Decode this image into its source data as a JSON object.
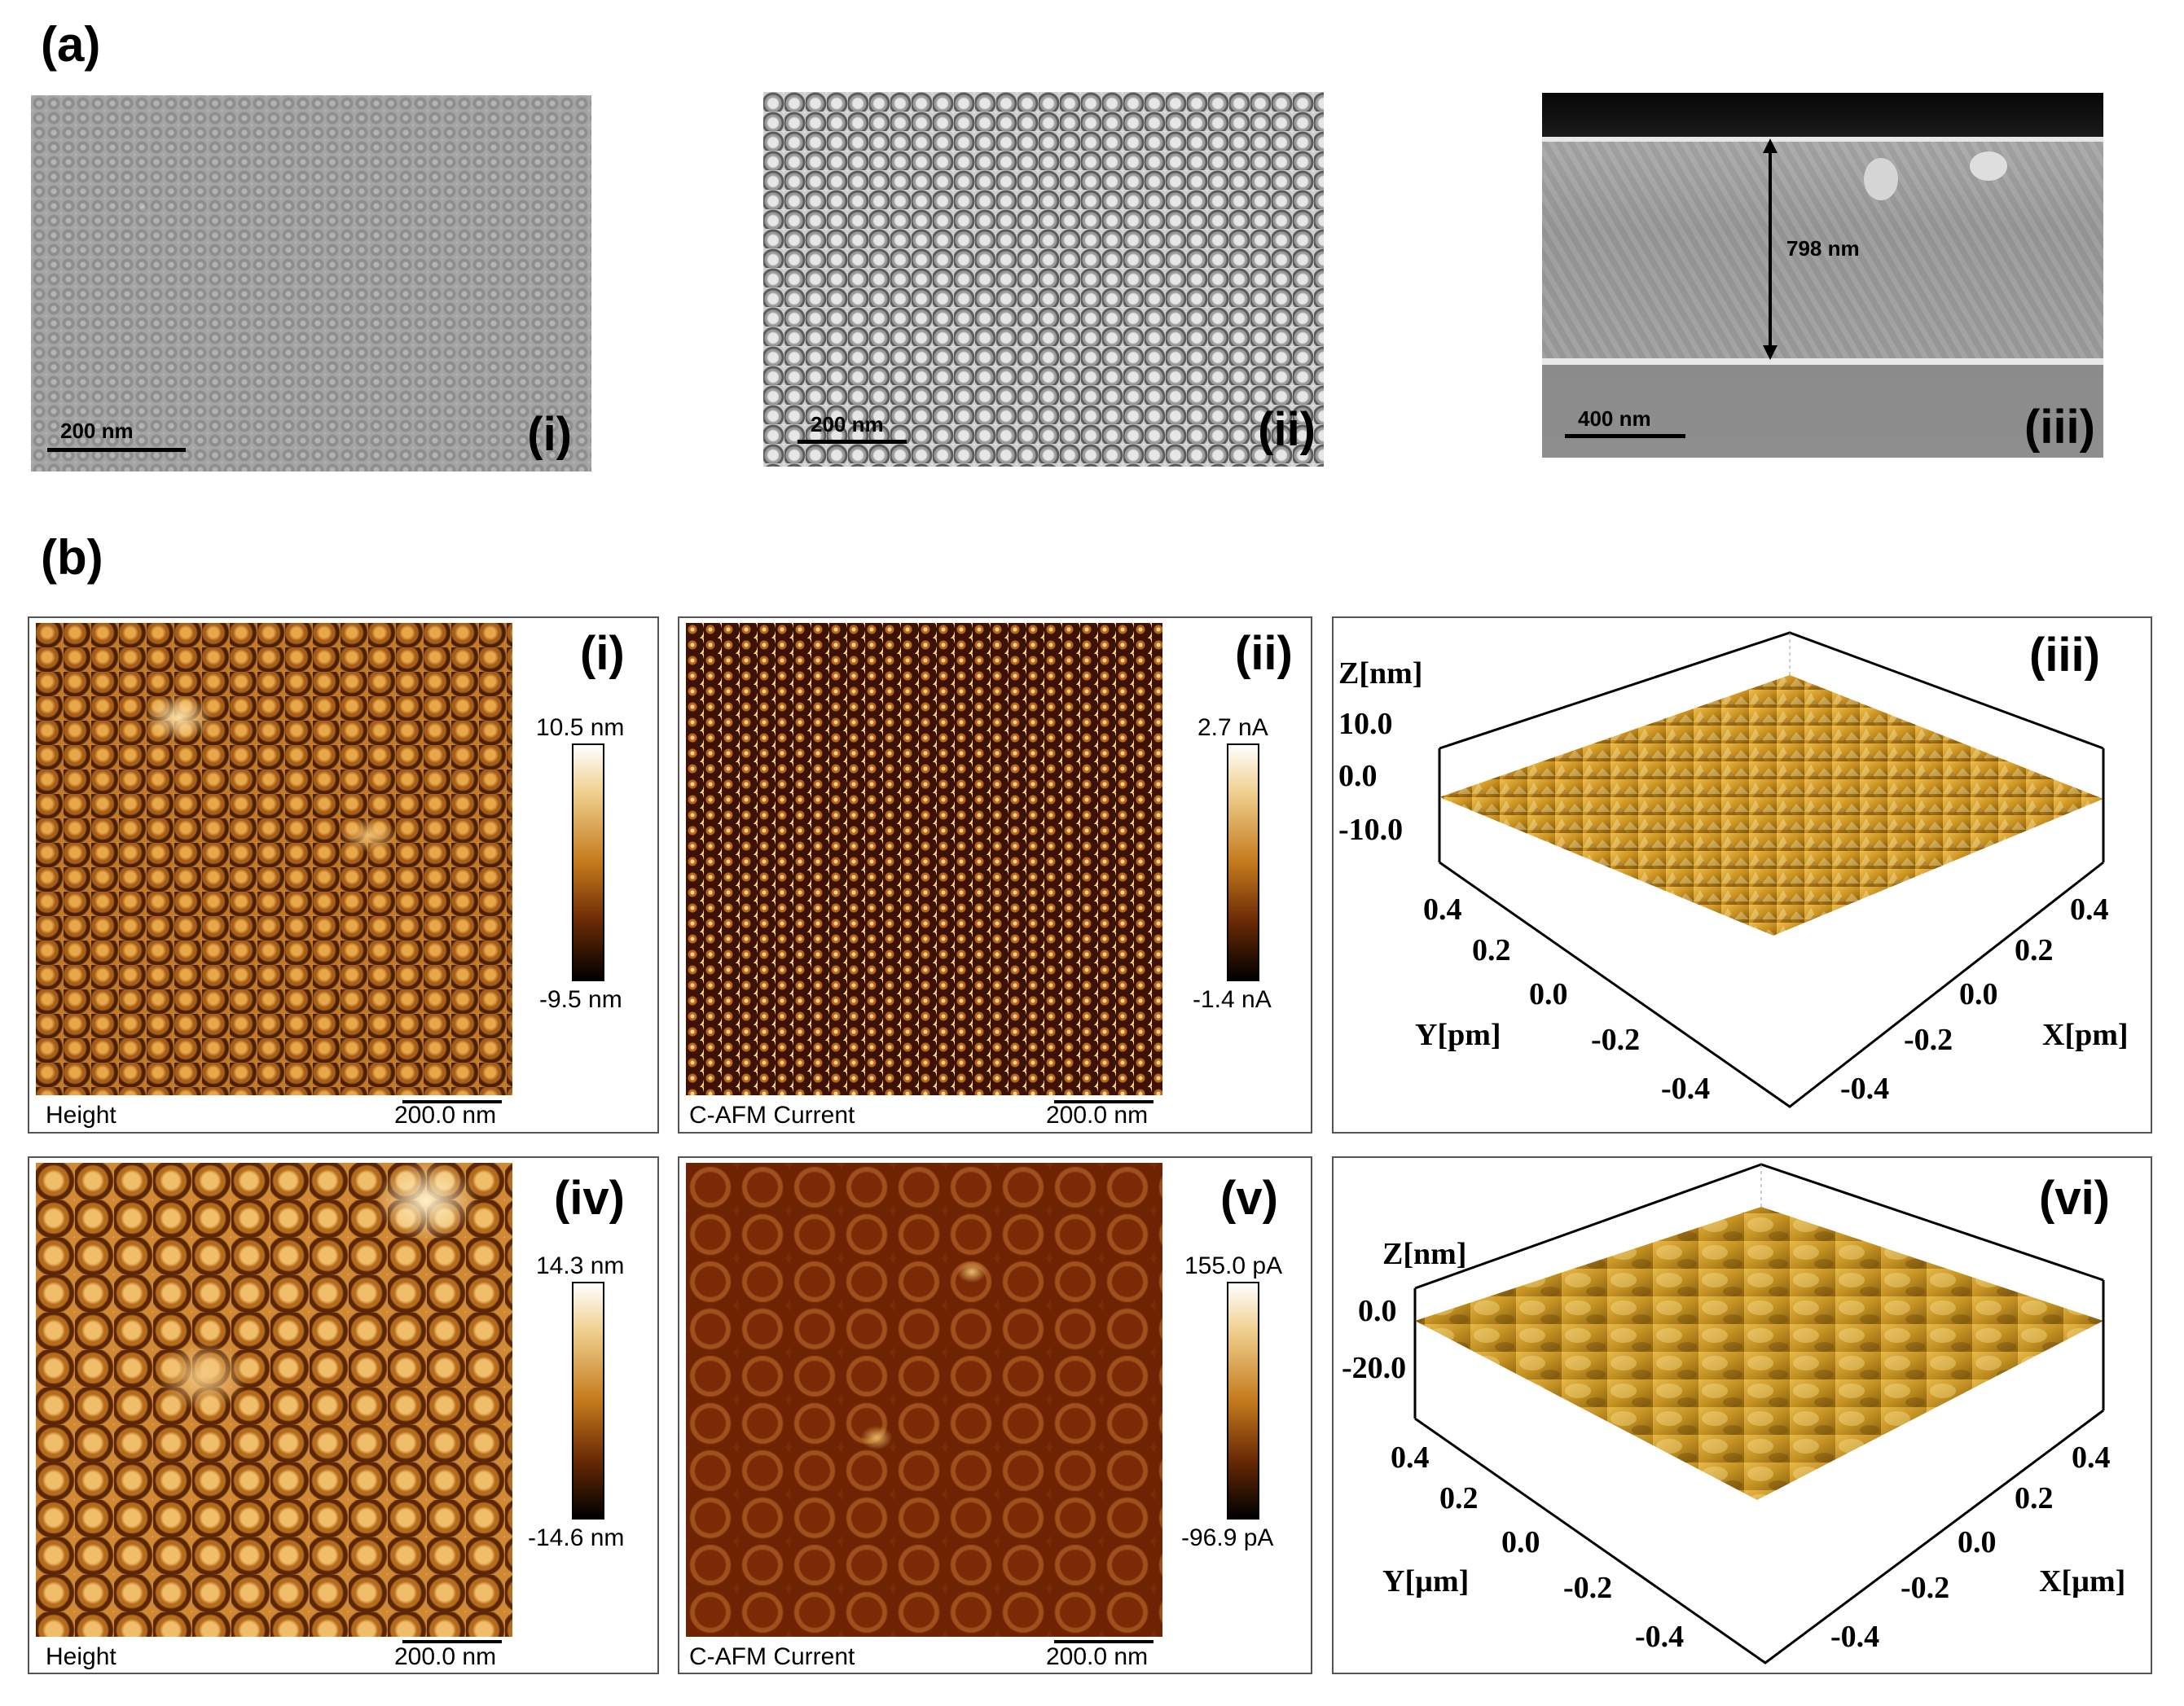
{
  "section_a": {
    "label": "(a)"
  },
  "section_b": {
    "label": "(b)"
  },
  "sem_panels": [
    {
      "roman": "(i)",
      "scale": "200 nm"
    },
    {
      "roman": "(ii)",
      "scale": "200 nm"
    },
    {
      "roman": "(iii)",
      "scale": "400 nm",
      "thickness": "798 nm"
    }
  ],
  "afm_panels": [
    {
      "roman": "(i)",
      "caption": "Height",
      "scale": "200.0 nm",
      "cbar_max": "10.5 nm",
      "cbar_min": "-9.5 nm"
    },
    {
      "roman": "(ii)",
      "caption": "C-AFM Current",
      "scale": "200.0 nm",
      "cbar_max": "2.7 nA",
      "cbar_min": "-1.4 nA"
    },
    {
      "roman": "(iv)",
      "caption": "Height",
      "scale": "200.0 nm",
      "cbar_max": "14.3 nm",
      "cbar_min": "-14.6 nm"
    },
    {
      "roman": "(v)",
      "caption": "C-AFM Current",
      "scale": "200.0 nm",
      "cbar_max": "155.0 pA",
      "cbar_min": "-96.9 pA"
    }
  ],
  "plot3d": [
    {
      "roman": "(iii)",
      "z_label": "Z[nm]",
      "z_ticks": [
        "10.0",
        "0.0",
        "-10.0"
      ],
      "y_label": "Y[pm]",
      "y_ticks": [
        "0.4",
        "0.2",
        "0.0",
        "-0.2",
        "-0.4"
      ],
      "x_label": "X[pm]",
      "x_ticks": [
        "0.4",
        "0.2",
        "0.0",
        "-0.2",
        "-0.4"
      ]
    },
    {
      "roman": "(vi)",
      "z_label": "Z[nm]",
      "z_ticks": [
        "0.0",
        "-20.0"
      ],
      "y_label": "Y[µm]",
      "y_ticks": [
        "0.4",
        "0.2",
        "0.0",
        "-0.2",
        "-0.4"
      ],
      "x_label": "X[µm]",
      "x_ticks": [
        "0.4",
        "0.2",
        "0.0",
        "-0.2",
        "-0.4"
      ]
    }
  ],
  "colors": {
    "afm_bright": "#ffe9b0",
    "afm_mid": "#c47a1c",
    "afm_dark": "#2a0c03",
    "sem_gray": "#9c9c9c"
  }
}
